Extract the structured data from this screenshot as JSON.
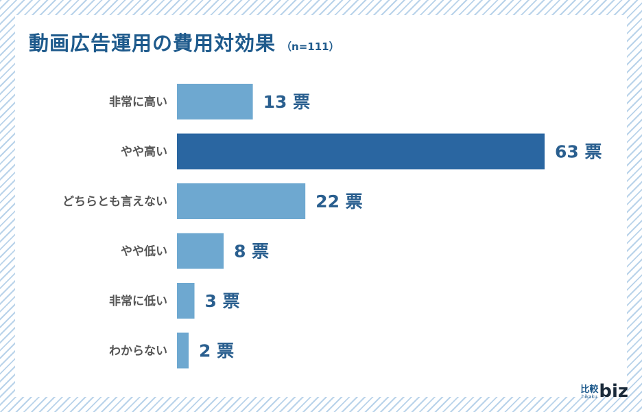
{
  "title": "動画広告運用の費用対効果",
  "subtitle": "（n=111）",
  "colors": {
    "bar": "#6ea8d0",
    "bar_highlight": "#2a66a1",
    "value_text": "#2a5f8f",
    "title": "#1e5a8c"
  },
  "chart_data": {
    "type": "bar",
    "orientation": "horizontal",
    "categories": [
      "非常に高い",
      "やや高い",
      "どちらとも言えない",
      "やや低い",
      "非常に低い",
      "わからない"
    ],
    "values": [
      13,
      63,
      22,
      8,
      3,
      2
    ],
    "value_labels": [
      "13 票",
      "63 票",
      "22 票",
      "8 票",
      "3 票",
      "2 票"
    ],
    "highlight_index": 1,
    "grid": false,
    "legend": "none"
  },
  "logo": {
    "kanji": "比較",
    "small": "hikaku",
    "biz": "biz"
  }
}
